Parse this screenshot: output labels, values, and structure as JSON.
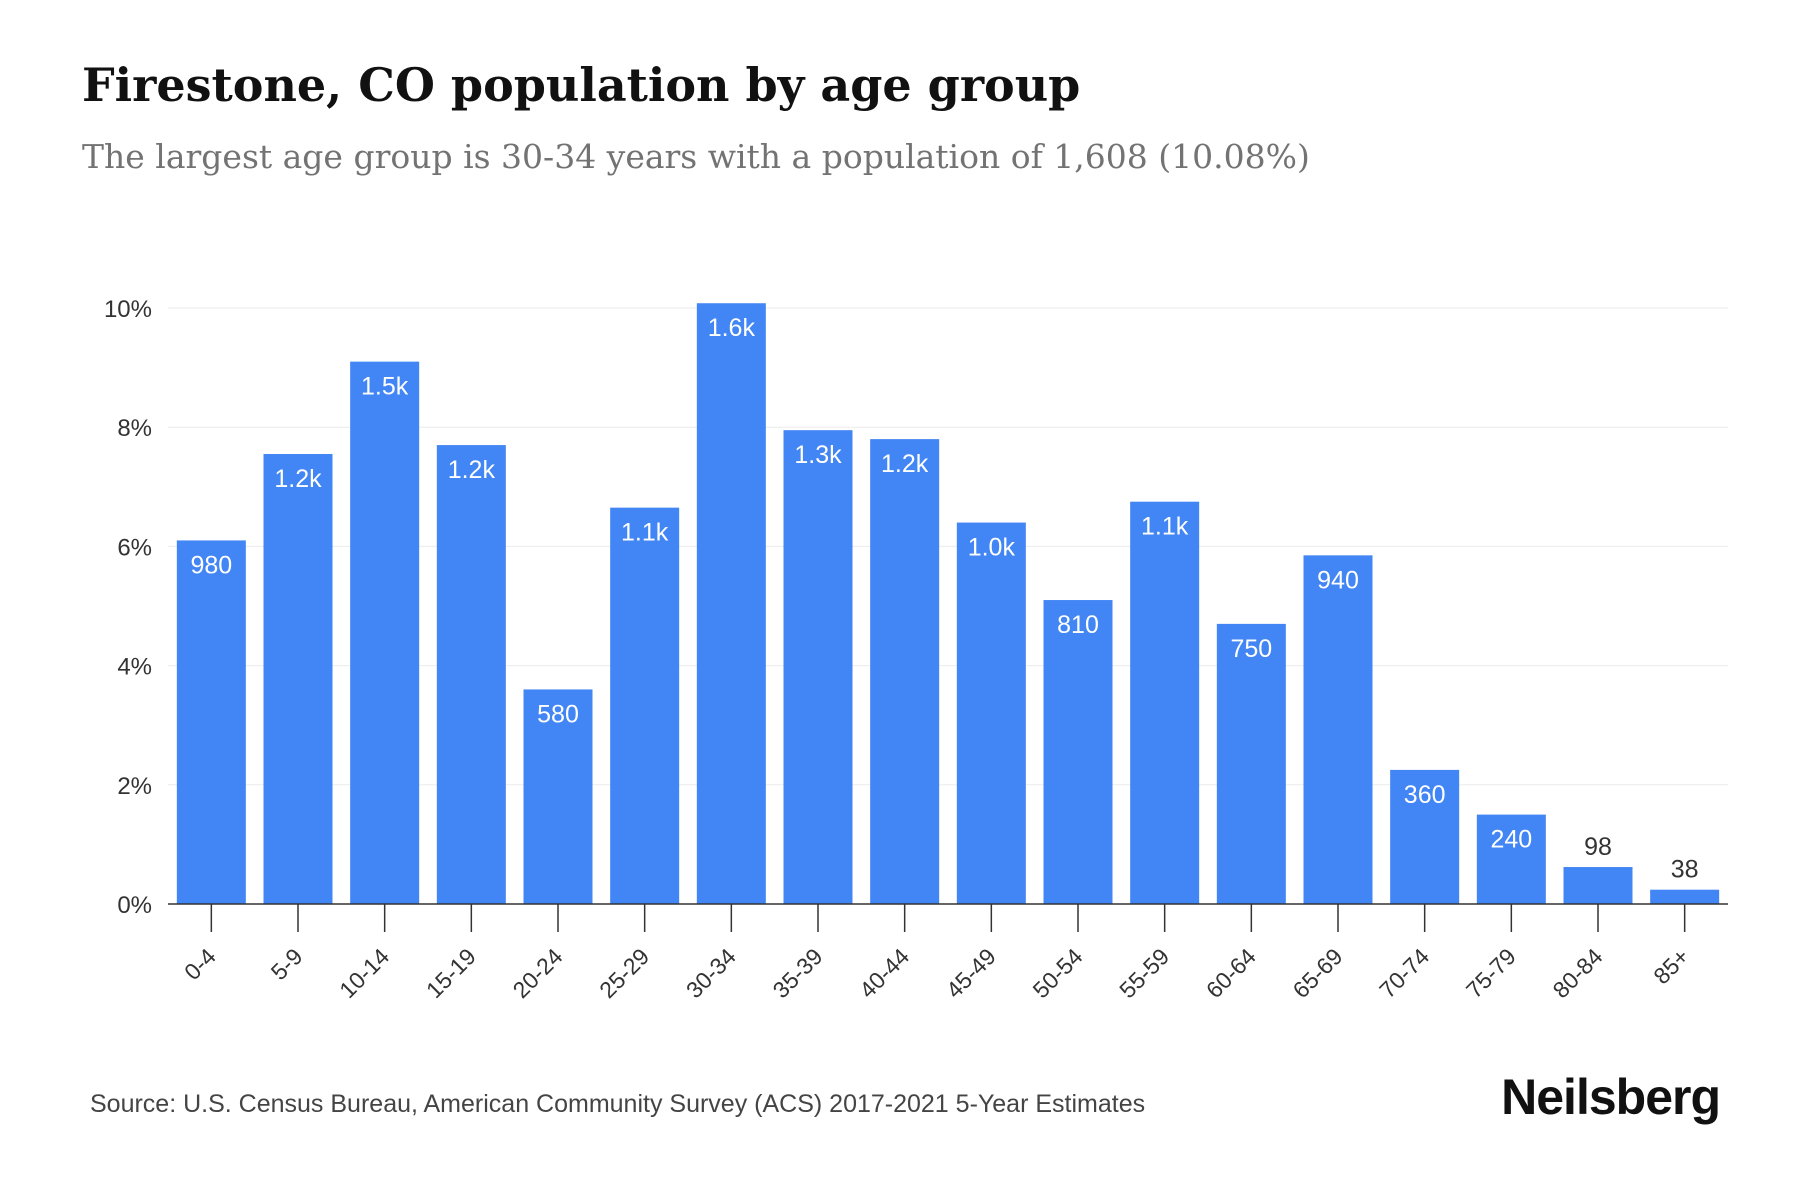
{
  "header": {
    "title": "Firestone, CO population by age group",
    "subtitle": "The largest age group is 30-34 years with a population of 1,608 (10.08%)"
  },
  "footer": {
    "source": "Source: U.S. Census Bureau, American Community Survey (ACS) 2017-2021 5-Year Estimates",
    "brand": "Neilsberg"
  },
  "colors": {
    "bar": "#4285F4",
    "label_inside": "#ffffff",
    "label_outside": "#333333",
    "grid": "#ebebeb",
    "axis": "#333333"
  },
  "chart_data": {
    "type": "bar",
    "title": "Firestone, CO population by age group",
    "categories": [
      "0-4",
      "5-9",
      "10-14",
      "15-19",
      "20-24",
      "25-29",
      "30-34",
      "35-39",
      "40-44",
      "45-49",
      "50-54",
      "55-59",
      "60-64",
      "65-69",
      "70-74",
      "75-79",
      "80-84",
      "85+"
    ],
    "values": [
      6.1,
      7.55,
      9.1,
      7.7,
      3.6,
      6.65,
      10.08,
      7.95,
      7.8,
      6.4,
      5.1,
      6.75,
      4.7,
      5.85,
      2.25,
      1.5,
      0.62,
      0.24
    ],
    "value_labels": [
      "980",
      "1.2k",
      "1.5k",
      "1.2k",
      "580",
      "1.1k",
      "1.6k",
      "1.3k",
      "1.2k",
      "1.0k",
      "810",
      "1.1k",
      "750",
      "940",
      "360",
      "240",
      "98",
      "38"
    ],
    "y_ticks": [
      "0%",
      "2%",
      "4%",
      "6%",
      "8%",
      "10%"
    ],
    "y_tick_values": [
      0,
      2,
      4,
      6,
      8,
      10
    ],
    "ylim": [
      0,
      10
    ],
    "xlabel": "",
    "ylabel": "",
    "grid": true,
    "legend": "none"
  }
}
